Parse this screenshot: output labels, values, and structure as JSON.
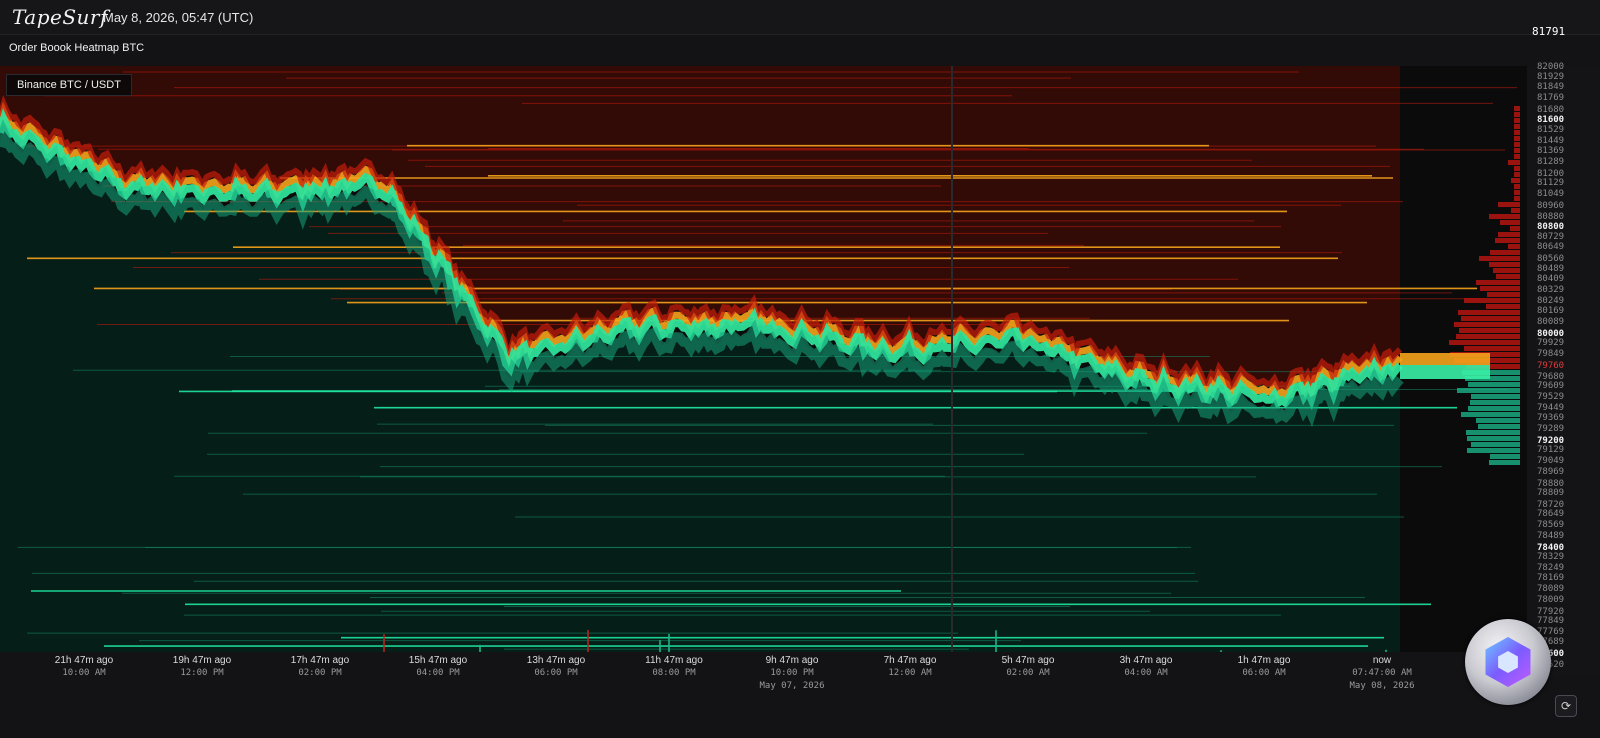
{
  "header": {
    "brand": "TapeSurf",
    "datetime": "May 8, 2026, 05:47 (UTC)",
    "subtitle": "Order Boook Heatmap BTC"
  },
  "chart": {
    "market_label": "Binance BTC / USDT",
    "last_price": "81791",
    "marked_price": "79760"
  },
  "colors": {
    "background": "#131316",
    "ask_low": "#3a0a06",
    "ask_mid": "#c41c0c",
    "ask_high": "#f5a31b",
    "bid_low": "#0b3b2e",
    "bid_high": "#1fe6a0",
    "price_ribbon": "#2ee29a"
  },
  "chart_data": {
    "type": "heatmap",
    "title": "Order Boook Heatmap BTC",
    "subtitle": "Binance BTC / USDT",
    "ylim": [
      77520,
      82000
    ],
    "price_ticks": [
      "82000",
      "81929",
      "81849",
      "81769",
      "81680",
      "81600",
      "81529",
      "81449",
      "81369",
      "81289",
      "81200",
      "81129",
      "81049",
      "80960",
      "80880",
      "80800",
      "80729",
      "80649",
      "80560",
      "80489",
      "80409",
      "80329",
      "80249",
      "80169",
      "80089",
      "80000",
      "79929",
      "79849",
      "79760",
      "79680",
      "79609",
      "79529",
      "79449",
      "79369",
      "79289",
      "79200",
      "79129",
      "79049",
      "78969",
      "78880",
      "78809",
      "78720",
      "78649",
      "78569",
      "78489",
      "78400",
      "78329",
      "78249",
      "78169",
      "78089",
      "78009",
      "77920",
      "77849",
      "77769",
      "77689",
      "77600",
      "77520"
    ],
    "strong_ticks": [
      "81600",
      "80800",
      "80000",
      "79200",
      "78400",
      "77600"
    ],
    "time_labels": [
      {
        "ago": "21h 47m ago",
        "clock": "10:00 AM"
      },
      {
        "ago": "19h 47m ago",
        "clock": "12:00 PM"
      },
      {
        "ago": "17h 47m ago",
        "clock": "02:00 PM"
      },
      {
        "ago": "15h 47m ago",
        "clock": "04:00 PM"
      },
      {
        "ago": "13h 47m ago",
        "clock": "06:00 PM"
      },
      {
        "ago": "11h 47m ago",
        "clock": "08:00 PM"
      },
      {
        "ago": "9h 47m ago",
        "clock": "10:00 PM",
        "date": "May 07, 2026"
      },
      {
        "ago": "7h 47m ago",
        "clock": "12:00 AM"
      },
      {
        "ago": "5h 47m ago",
        "clock": "02:00 AM"
      },
      {
        "ago": "3h 47m ago",
        "clock": "04:00 AM"
      },
      {
        "ago": "1h 47m ago",
        "clock": "06:00 AM"
      },
      {
        "ago": "now",
        "clock": "07:47:00 AM",
        "date": "May 08, 2026"
      }
    ],
    "price_path": {
      "x_labels": [
        "21h 47m ago",
        "19h 47m ago",
        "17h 47m ago",
        "15h 47m ago",
        "13h 47m ago",
        "11h 47m ago",
        "9h 47m ago",
        "7h 47m ago",
        "5h 47m ago",
        "3h 47m ago",
        "1h 47m ago",
        "now"
      ],
      "mid_price": [
        81560,
        81100,
        81050,
        81120,
        79820,
        80050,
        80060,
        79870,
        79960,
        79640,
        79520,
        79760
      ]
    }
  }
}
